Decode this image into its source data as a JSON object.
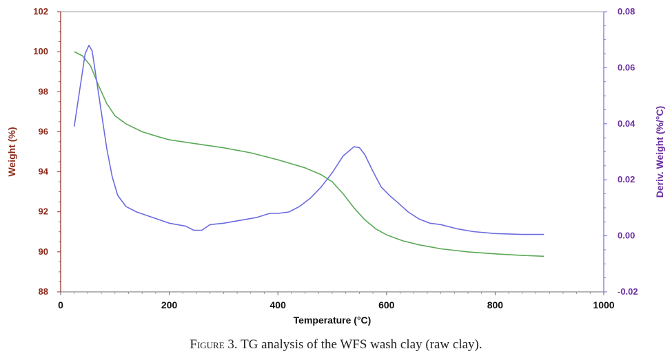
{
  "chart_data": {
    "type": "line",
    "xlabel": "Temperature (°C)",
    "ylabel": "Weight (%)",
    "y2label": "Deriv. Weight (%/°C)",
    "xlim": [
      0,
      1000
    ],
    "ylim": [
      88,
      102
    ],
    "y2lim": [
      -0.02,
      0.08
    ],
    "x_ticks": [
      0,
      200,
      400,
      600,
      800,
      1000
    ],
    "y_ticks": [
      88,
      90,
      92,
      94,
      96,
      98,
      100,
      102
    ],
    "y2_ticks": [
      "-0.02",
      "0.00",
      "0.02",
      "0.04",
      "0.06",
      "0.08"
    ],
    "grid": false,
    "series": [
      {
        "axis": "left",
        "color": "#5aa855",
        "points": [
          [
            25,
            100.0
          ],
          [
            40,
            99.8
          ],
          [
            55,
            99.3
          ],
          [
            70,
            98.3
          ],
          [
            85,
            97.4
          ],
          [
            100,
            96.8
          ],
          [
            120,
            96.4
          ],
          [
            150,
            96.0
          ],
          [
            180,
            95.75
          ],
          [
            200,
            95.6
          ],
          [
            250,
            95.4
          ],
          [
            300,
            95.2
          ],
          [
            350,
            94.95
          ],
          [
            400,
            94.6
          ],
          [
            450,
            94.2
          ],
          [
            480,
            93.85
          ],
          [
            500,
            93.5
          ],
          [
            520,
            92.9
          ],
          [
            540,
            92.2
          ],
          [
            560,
            91.6
          ],
          [
            580,
            91.15
          ],
          [
            600,
            90.85
          ],
          [
            630,
            90.55
          ],
          [
            660,
            90.35
          ],
          [
            700,
            90.15
          ],
          [
            750,
            90.0
          ],
          [
            800,
            89.9
          ],
          [
            850,
            89.82
          ],
          [
            890,
            89.78
          ]
        ]
      },
      {
        "axis": "right",
        "color": "#6b6be0",
        "points": [
          [
            25,
            0.039
          ],
          [
            35,
            0.052
          ],
          [
            45,
            0.065
          ],
          [
            52,
            0.068
          ],
          [
            58,
            0.066
          ],
          [
            65,
            0.057
          ],
          [
            75,
            0.044
          ],
          [
            85,
            0.031
          ],
          [
            95,
            0.021
          ],
          [
            105,
            0.0145
          ],
          [
            120,
            0.0105
          ],
          [
            140,
            0.0085
          ],
          [
            170,
            0.0065
          ],
          [
            200,
            0.0045
          ],
          [
            230,
            0.0035
          ],
          [
            245,
            0.002
          ],
          [
            260,
            0.002
          ],
          [
            275,
            0.004
          ],
          [
            300,
            0.0045
          ],
          [
            330,
            0.0055
          ],
          [
            360,
            0.0065
          ],
          [
            385,
            0.008
          ],
          [
            400,
            0.008
          ],
          [
            420,
            0.0085
          ],
          [
            440,
            0.0105
          ],
          [
            460,
            0.0135
          ],
          [
            480,
            0.0175
          ],
          [
            500,
            0.0225
          ],
          [
            520,
            0.0285
          ],
          [
            540,
            0.0318
          ],
          [
            550,
            0.0315
          ],
          [
            560,
            0.029
          ],
          [
            575,
            0.023
          ],
          [
            590,
            0.0175
          ],
          [
            605,
            0.0145
          ],
          [
            620,
            0.012
          ],
          [
            640,
            0.0085
          ],
          [
            660,
            0.006
          ],
          [
            680,
            0.0045
          ],
          [
            700,
            0.004
          ],
          [
            730,
            0.0025
          ],
          [
            760,
            0.0015
          ],
          [
            800,
            0.0008
          ],
          [
            850,
            0.0005
          ],
          [
            890,
            0.0005
          ]
        ]
      }
    ]
  },
  "caption": {
    "prefix": "Figure",
    "text": " 3. TG analysis of the WFS wash clay (raw clay)."
  },
  "colors": {
    "left_axis": "#8b2a1a",
    "right_axis": "#6b2fa0",
    "axis_line_left": "#8b2a1a",
    "axis_line_right": "#6b6bd6",
    "frame": "#a0a0a0"
  }
}
